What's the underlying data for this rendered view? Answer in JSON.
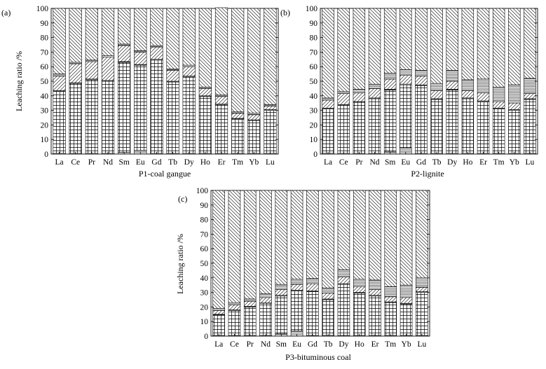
{
  "chart_data": [
    {
      "type": "bar",
      "stacked": true,
      "panel_label": "(a)",
      "title": "",
      "xlabel": "P1-coal gangue",
      "ylabel": "Leaching ratio /%",
      "ylim": [
        0,
        100
      ],
      "yticks": [
        0,
        10,
        20,
        30,
        40,
        50,
        60,
        70,
        80,
        90,
        100
      ],
      "categories": [
        "La",
        "Ce",
        "Pr",
        "Nd",
        "Sm",
        "Eu",
        "Gd",
        "Tb",
        "Dy",
        "Ho",
        "Er",
        "Tm",
        "Yb",
        "Lu"
      ],
      "series": [
        {
          "pattern": "horizontal-lines",
          "values": [
            0.5,
            0.5,
            0.5,
            0.5,
            1.0,
            2.5,
            0.5,
            0.5,
            0.5,
            0.5,
            0.5,
            0.5,
            0.5,
            0.5
          ]
        },
        {
          "pattern": "grid",
          "values": [
            42.5,
            48.0,
            50.5,
            49.5,
            62.0,
            58.5,
            64.0,
            49.0,
            52.5,
            39.0,
            33.5,
            23.5,
            22.5,
            29.5
          ]
        },
        {
          "pattern": "horizontal-lines",
          "values": [
            0.5,
            0.5,
            0.5,
            0.5,
            0.5,
            0.5,
            0.5,
            0.5,
            0.5,
            0.5,
            0.5,
            0.5,
            0.5,
            0.5
          ]
        },
        {
          "pattern": "diagonal-up",
          "values": [
            10.0,
            13.0,
            12.0,
            16.0,
            11.0,
            8.5,
            8.5,
            7.5,
            6.5,
            5.0,
            5.0,
            3.5,
            3.5,
            2.5
          ]
        },
        {
          "pattern": "horizontal-lines",
          "values": [
            1.5,
            1.0,
            1.0,
            1.0,
            1.0,
            1.0,
            1.0,
            1.0,
            1.0,
            1.0,
            1.0,
            1.0,
            1.0,
            1.0
          ]
        },
        {
          "pattern": "diagonal-down",
          "values": [
            45.0,
            37.0,
            35.5,
            32.5,
            24.5,
            29.0,
            25.5,
            41.5,
            39.0,
            54.0,
            60.0,
            71.0,
            72.0,
            66.0
          ]
        }
      ]
    },
    {
      "type": "bar",
      "stacked": true,
      "panel_label": "(b)",
      "title": "",
      "xlabel": "P2-lignite",
      "ylabel": "",
      "ylim": [
        0,
        100
      ],
      "yticks": [
        0,
        10,
        20,
        30,
        40,
        50,
        60,
        70,
        80,
        90,
        100
      ],
      "categories": [
        "La",
        "Ce",
        "Pr",
        "Nd",
        "Sm",
        "Eu",
        "Gd",
        "Tb",
        "Dy",
        "Ho",
        "Er",
        "Tm",
        "Yb",
        "Lu"
      ],
      "series": [
        {
          "pattern": "horizontal-lines",
          "values": [
            0.5,
            0.5,
            0.5,
            0.5,
            1.5,
            4.0,
            0.5,
            0.5,
            0.5,
            0.5,
            0.5,
            0.5,
            0.5,
            0.5
          ]
        },
        {
          "pattern": "grid",
          "values": [
            30.5,
            33.0,
            35.0,
            37.5,
            42.5,
            43.5,
            46.5,
            37.0,
            43.5,
            37.5,
            35.5,
            30.5,
            29.5,
            37.0
          ]
        },
        {
          "pattern": "horizontal-lines",
          "values": [
            0.5,
            0.5,
            0.5,
            0.5,
            0.5,
            0.5,
            0.5,
            0.5,
            0.5,
            0.5,
            0.5,
            0.5,
            0.5,
            0.5
          ]
        },
        {
          "pattern": "diagonal-up",
          "values": [
            5.5,
            7.5,
            6.0,
            6.5,
            7.0,
            6.0,
            6.0,
            5.5,
            5.5,
            5.0,
            5.5,
            4.5,
            4.5,
            3.5
          ]
        },
        {
          "pattern": "horizontal-lines",
          "values": [
            1.5,
            1.5,
            2.5,
            3.0,
            4.0,
            4.0,
            4.0,
            5.0,
            7.5,
            7.5,
            9.5,
            10.0,
            12.5,
            10.5
          ]
        },
        {
          "pattern": "diagonal-down",
          "values": [
            61.5,
            57.0,
            55.5,
            52.0,
            44.5,
            42.0,
            42.5,
            51.5,
            42.5,
            49.0,
            48.5,
            54.0,
            52.5,
            48.0
          ]
        }
      ]
    },
    {
      "type": "bar",
      "stacked": true,
      "panel_label": "(c)",
      "title": "",
      "xlabel": "P3-bituminous coal",
      "ylabel": "Leaching ratio /%",
      "ylim": [
        0,
        100
      ],
      "yticks": [
        0,
        10,
        20,
        30,
        40,
        50,
        60,
        70,
        80,
        90,
        100
      ],
      "categories": [
        "La",
        "Ce",
        "Pr",
        "Nd",
        "Sm",
        "Eu",
        "Gd",
        "Tb",
        "Dy",
        "Ho",
        "Er",
        "Tm",
        "Yb",
        "Lu"
      ],
      "series": [
        {
          "pattern": "horizontal-lines",
          "values": [
            0.5,
            0.5,
            0.5,
            0.5,
            1.5,
            3.5,
            0.5,
            0.5,
            0.5,
            0.5,
            0.5,
            0.5,
            0.5,
            0.5
          ]
        },
        {
          "pattern": "grid",
          "values": [
            14.0,
            17.0,
            19.5,
            22.0,
            26.0,
            27.5,
            30.0,
            24.5,
            35.0,
            29.0,
            27.0,
            22.5,
            21.5,
            29.5
          ]
        },
        {
          "pattern": "horizontal-lines",
          "values": [
            0.5,
            0.5,
            0.5,
            0.5,
            0.5,
            0.5,
            0.5,
            0.5,
            0.5,
            0.5,
            0.5,
            0.5,
            0.5,
            0.5
          ]
        },
        {
          "pattern": "diagonal-up",
          "values": [
            2.5,
            3.5,
            3.5,
            3.5,
            4.0,
            4.0,
            5.0,
            4.0,
            4.5,
            4.0,
            4.0,
            3.5,
            4.0,
            3.0
          ]
        },
        {
          "pattern": "horizontal-lines",
          "values": [
            1.5,
            1.5,
            1.5,
            2.5,
            3.5,
            3.5,
            3.5,
            3.5,
            5.0,
            5.0,
            6.5,
            7.0,
            8.5,
            6.5
          ]
        },
        {
          "pattern": "diagonal-down",
          "values": [
            81.0,
            77.0,
            74.5,
            71.0,
            64.5,
            61.0,
            60.5,
            67.0,
            54.5,
            61.0,
            61.5,
            66.0,
            65.0,
            60.0
          ]
        }
      ]
    }
  ]
}
